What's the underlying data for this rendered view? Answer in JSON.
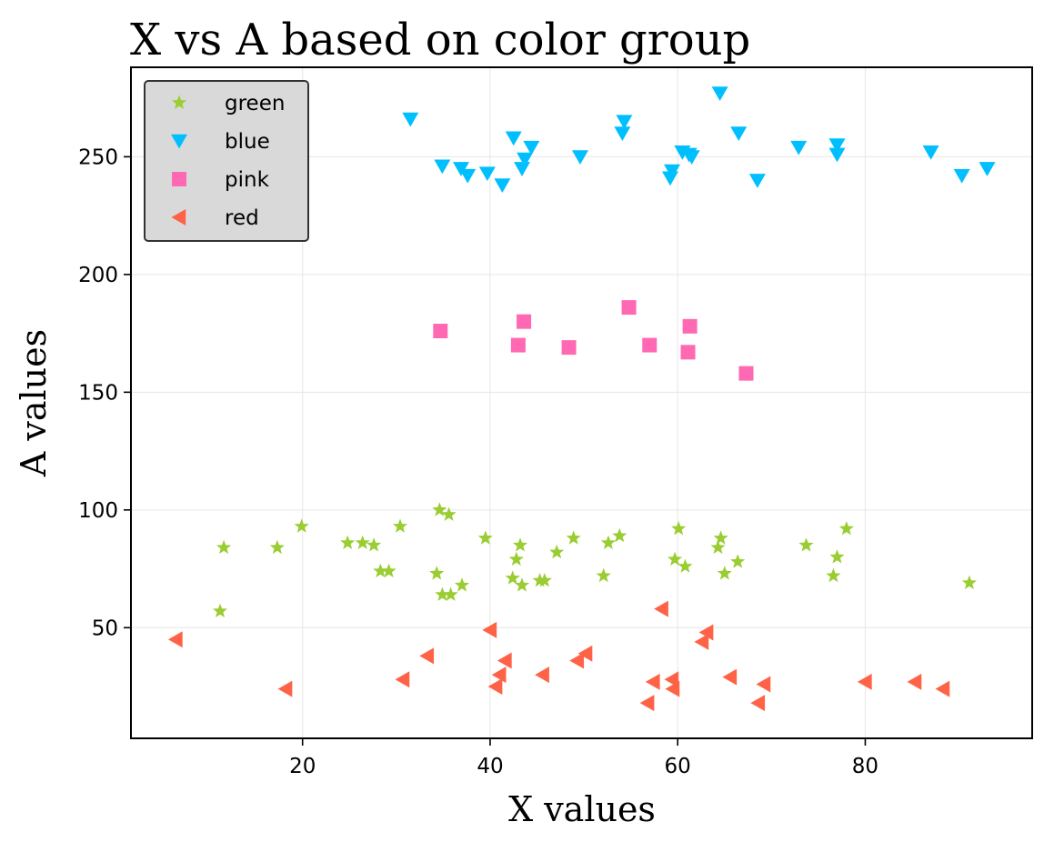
{
  "chart_data": {
    "type": "scatter",
    "title": "X vs A based on color group",
    "xlabel": "X values",
    "ylabel": "A values",
    "xlim": [
      1.7,
      97.8
    ],
    "ylim": [
      3,
      288
    ],
    "xticks": [
      20,
      40,
      60,
      80
    ],
    "yticks": [
      50,
      100,
      150,
      200,
      250
    ],
    "grid": true,
    "legend_position": "top-left",
    "series": [
      {
        "name": "green",
        "marker": "star",
        "color": "#9acd32",
        "points": [
          [
            11.2,
            57
          ],
          [
            11.6,
            84
          ],
          [
            17.3,
            84
          ],
          [
            19.9,
            93
          ],
          [
            24.8,
            86
          ],
          [
            26.4,
            86
          ],
          [
            27.6,
            85
          ],
          [
            28.3,
            74
          ],
          [
            29.2,
            74
          ],
          [
            30.4,
            93
          ],
          [
            34.3,
            73
          ],
          [
            34.6,
            100
          ],
          [
            34.9,
            64
          ],
          [
            35.6,
            98
          ],
          [
            35.8,
            64
          ],
          [
            37.0,
            68
          ],
          [
            39.5,
            88
          ],
          [
            42.4,
            71
          ],
          [
            42.8,
            79
          ],
          [
            43.2,
            85
          ],
          [
            43.4,
            68
          ],
          [
            45.3,
            70
          ],
          [
            45.8,
            70
          ],
          [
            47.1,
            82
          ],
          [
            48.9,
            88
          ],
          [
            52.1,
            72
          ],
          [
            52.6,
            86
          ],
          [
            53.8,
            89
          ],
          [
            59.7,
            79
          ],
          [
            60.1,
            92
          ],
          [
            60.8,
            76
          ],
          [
            64.3,
            84
          ],
          [
            64.6,
            88
          ],
          [
            65.0,
            73
          ],
          [
            66.4,
            78
          ],
          [
            73.7,
            85
          ],
          [
            76.6,
            72
          ],
          [
            77.0,
            80
          ],
          [
            78.0,
            92
          ],
          [
            91.1,
            69
          ]
        ]
      },
      {
        "name": "blue",
        "marker": "triangle-down",
        "color": "#00bfff",
        "points": [
          [
            31.5,
            266
          ],
          [
            34.9,
            246
          ],
          [
            36.9,
            245
          ],
          [
            37.6,
            242
          ],
          [
            39.7,
            243
          ],
          [
            41.3,
            238
          ],
          [
            42.5,
            258
          ],
          [
            43.4,
            245
          ],
          [
            43.7,
            249
          ],
          [
            44.4,
            254
          ],
          [
            49.6,
            250
          ],
          [
            54.1,
            260
          ],
          [
            54.3,
            265
          ],
          [
            59.2,
            241
          ],
          [
            59.4,
            244
          ],
          [
            60.5,
            252
          ],
          [
            61.2,
            251
          ],
          [
            61.5,
            250
          ],
          [
            64.5,
            277
          ],
          [
            66.5,
            260
          ],
          [
            68.5,
            240
          ],
          [
            72.9,
            254
          ],
          [
            77.0,
            255
          ],
          [
            77.0,
            251
          ],
          [
            87.0,
            252
          ],
          [
            90.3,
            242
          ],
          [
            93.0,
            245
          ]
        ]
      },
      {
        "name": "pink",
        "marker": "square",
        "color": "#ff69b4",
        "points": [
          [
            34.7,
            176
          ],
          [
            43.0,
            170
          ],
          [
            43.6,
            180
          ],
          [
            48.4,
            169
          ],
          [
            54.8,
            186
          ],
          [
            57.0,
            170
          ],
          [
            61.1,
            167
          ],
          [
            61.3,
            178
          ],
          [
            67.3,
            158
          ]
        ]
      },
      {
        "name": "red",
        "marker": "triangle-left",
        "color": "#ff6347",
        "points": [
          [
            6.5,
            45
          ],
          [
            18.2,
            24
          ],
          [
            30.7,
            28
          ],
          [
            33.3,
            38
          ],
          [
            40.0,
            49
          ],
          [
            40.6,
            25
          ],
          [
            41.0,
            30
          ],
          [
            41.6,
            36
          ],
          [
            45.6,
            30
          ],
          [
            49.3,
            36
          ],
          [
            50.2,
            39
          ],
          [
            56.8,
            18
          ],
          [
            57.4,
            27
          ],
          [
            58.3,
            58
          ],
          [
            59.4,
            28
          ],
          [
            59.5,
            24
          ],
          [
            62.6,
            44
          ],
          [
            63.1,
            48
          ],
          [
            65.6,
            29
          ],
          [
            68.6,
            18
          ],
          [
            69.2,
            26
          ],
          [
            80.0,
            27
          ],
          [
            85.3,
            27
          ],
          [
            88.3,
            24
          ]
        ]
      }
    ]
  }
}
